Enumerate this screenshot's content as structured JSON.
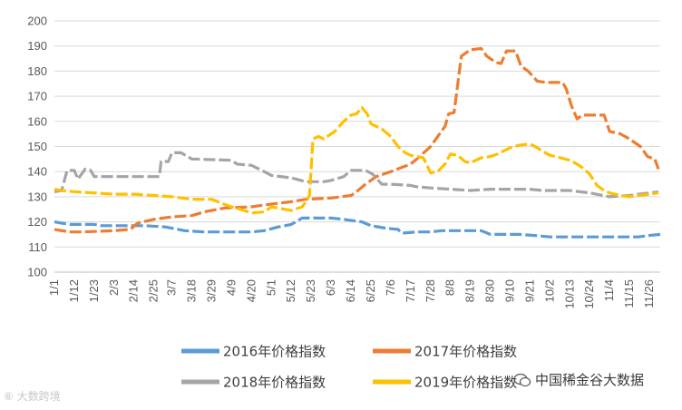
{
  "chart_data": {
    "type": "line",
    "title": "",
    "xlabel": "",
    "ylabel": "",
    "ylim": [
      100,
      200
    ],
    "yticks": [
      100,
      110,
      120,
      130,
      140,
      150,
      160,
      170,
      180,
      190,
      200
    ],
    "grid": true,
    "legend": "bottom",
    "x_ticks": [
      "1/1",
      "1/12",
      "1/23",
      "2/3",
      "2/14",
      "2/25",
      "3/7",
      "3/18",
      "3/29",
      "4/9",
      "4/20",
      "5/1",
      "5/12",
      "5/23",
      "6/3",
      "6/14",
      "6/25",
      "7/6",
      "7/17",
      "7/28",
      "8/8",
      "8/19",
      "8/30",
      "9/10",
      "9/21",
      "10/2",
      "10/13",
      "10/24",
      "11/4",
      "11/15",
      "11/26"
    ],
    "series": [
      {
        "name": "2016年价格指数",
        "color": "#5B9BD5",
        "values": [
          [
            "1/1",
            120
          ],
          [
            "1/5",
            119.5
          ],
          [
            "1/10",
            119
          ],
          [
            "1/23",
            119
          ],
          [
            "1/27",
            118.5
          ],
          [
            "2/20",
            118.5
          ],
          [
            "3/3",
            118
          ],
          [
            "3/14",
            116.5
          ],
          [
            "3/25",
            116
          ],
          [
            "4/9",
            116
          ],
          [
            "4/20",
            116
          ],
          [
            "4/27",
            116.5
          ],
          [
            "5/5",
            118
          ],
          [
            "5/12",
            119
          ],
          [
            "5/18",
            121.5
          ],
          [
            "6/3",
            121.5
          ],
          [
            "6/10",
            121
          ],
          [
            "6/20",
            120
          ],
          [
            "6/25",
            118.5
          ],
          [
            "7/3",
            117.5
          ],
          [
            "7/10",
            117
          ],
          [
            "7/12",
            115.5
          ],
          [
            "7/20",
            116
          ],
          [
            "7/28",
            116
          ],
          [
            "8/3",
            116.5
          ],
          [
            "8/25",
            116.5
          ],
          [
            "8/30",
            115
          ],
          [
            "9/15",
            115
          ],
          [
            "9/25",
            114.5
          ],
          [
            "10/2",
            114
          ],
          [
            "10/20",
            114
          ],
          [
            "11/1",
            114
          ],
          [
            "11/20",
            114
          ],
          [
            "11/25",
            114.5
          ],
          [
            "12/2",
            115
          ]
        ]
      },
      {
        "name": "2017年价格指数",
        "color": "#ED7D31",
        "values": [
          [
            "1/1",
            117
          ],
          [
            "1/5",
            116.5
          ],
          [
            "1/10",
            116
          ],
          [
            "1/16",
            116
          ],
          [
            "2/3",
            116.5
          ],
          [
            "2/12",
            117
          ],
          [
            "2/16",
            119.5
          ],
          [
            "2/25",
            121
          ],
          [
            "3/7",
            122
          ],
          [
            "3/18",
            122.5
          ],
          [
            "3/25",
            124
          ],
          [
            "4/5",
            125.5
          ],
          [
            "4/20",
            126
          ],
          [
            "4/30",
            127
          ],
          [
            "5/12",
            128
          ],
          [
            "5/20",
            129
          ],
          [
            "6/3",
            129.5
          ],
          [
            "6/14",
            130.5
          ],
          [
            "6/17",
            132
          ],
          [
            "6/22",
            135
          ],
          [
            "6/28",
            138
          ],
          [
            "7/6",
            140
          ],
          [
            "7/17",
            143
          ],
          [
            "7/22",
            146
          ],
          [
            "7/28",
            150
          ],
          [
            "8/1",
            154
          ],
          [
            "8/5",
            158
          ],
          [
            "8/7",
            163
          ],
          [
            "8/10",
            163.5
          ],
          [
            "8/14",
            186
          ],
          [
            "8/19",
            188.5
          ],
          [
            "8/25",
            189
          ],
          [
            "8/28",
            186
          ],
          [
            "9/2",
            183.5
          ],
          [
            "9/5",
            183
          ],
          [
            "9/8",
            188
          ],
          [
            "9/13",
            188
          ],
          [
            "9/16",
            182
          ],
          [
            "9/20",
            180
          ],
          [
            "9/25",
            176
          ],
          [
            "9/30",
            175.5
          ],
          [
            "10/9",
            175.5
          ],
          [
            "10/11",
            173
          ],
          [
            "10/14",
            166
          ],
          [
            "10/17",
            161
          ],
          [
            "10/20",
            162.5
          ],
          [
            "11/1",
            162.5
          ],
          [
            "11/4",
            156
          ],
          [
            "11/10",
            155
          ],
          [
            "11/15",
            153
          ],
          [
            "11/21",
            150
          ],
          [
            "11/25",
            146
          ],
          [
            "11/29",
            145
          ],
          [
            "12/1",
            141
          ]
        ]
      },
      {
        "name": "2018年价格指数",
        "color": "#A5A5A5",
        "values": [
          [
            "1/1",
            132
          ],
          [
            "1/5",
            132.5
          ],
          [
            "1/8",
            140.5
          ],
          [
            "1/12",
            140.5
          ],
          [
            "1/14",
            137
          ],
          [
            "1/18",
            141
          ],
          [
            "1/21",
            140.5
          ],
          [
            "1/23",
            138
          ],
          [
            "2/3",
            138
          ],
          [
            "2/7",
            138
          ],
          [
            "2/28",
            138
          ],
          [
            "3/1",
            144
          ],
          [
            "3/5",
            144
          ],
          [
            "3/7",
            147.5
          ],
          [
            "3/12",
            147.5
          ],
          [
            "3/18",
            145
          ],
          [
            "4/9",
            144.5
          ],
          [
            "4/12",
            143
          ],
          [
            "4/20",
            142.5
          ],
          [
            "4/27",
            140
          ],
          [
            "5/1",
            138.5
          ],
          [
            "5/12",
            137.5
          ],
          [
            "5/20",
            136
          ],
          [
            "5/30",
            136
          ],
          [
            "6/3",
            136.5
          ],
          [
            "6/10",
            138
          ],
          [
            "6/14",
            140.5
          ],
          [
            "6/22",
            140.5
          ],
          [
            "6/26",
            139
          ],
          [
            "7/1",
            135
          ],
          [
            "7/6",
            135
          ],
          [
            "7/17",
            134.5
          ],
          [
            "7/20",
            134
          ],
          [
            "7/28",
            133.5
          ],
          [
            "8/8",
            133
          ],
          [
            "8/19",
            132.5
          ],
          [
            "8/30",
            133
          ],
          [
            "9/21",
            133
          ],
          [
            "9/28",
            132.5
          ],
          [
            "10/13",
            132.5
          ],
          [
            "10/24",
            131.5
          ],
          [
            "11/4",
            130
          ],
          [
            "11/15",
            130.5
          ],
          [
            "11/20",
            131
          ],
          [
            "11/26",
            131.5
          ],
          [
            "12/1",
            132
          ]
        ]
      },
      {
        "name": "2019年价格指数",
        "color": "#FFC000",
        "values": [
          [
            "1/1",
            133
          ],
          [
            "1/5",
            132.5
          ],
          [
            "1/12",
            132
          ],
          [
            "1/23",
            131.5
          ],
          [
            "2/3",
            131
          ],
          [
            "2/14",
            131
          ],
          [
            "2/25",
            130.5
          ],
          [
            "3/7",
            130
          ],
          [
            "3/18",
            129
          ],
          [
            "3/29",
            129
          ],
          [
            "4/5",
            127
          ],
          [
            "4/9",
            126
          ],
          [
            "4/16",
            124.5
          ],
          [
            "4/20",
            123.5
          ],
          [
            "4/27",
            124
          ],
          [
            "5/1",
            126
          ],
          [
            "5/12",
            124.5
          ],
          [
            "5/18",
            126
          ],
          [
            "5/20",
            128
          ],
          [
            "5/22",
            130.5
          ],
          [
            "5/24",
            153
          ],
          [
            "5/27",
            154
          ],
          [
            "5/30",
            153
          ],
          [
            "6/3",
            155
          ],
          [
            "6/5",
            156
          ],
          [
            "6/10",
            160
          ],
          [
            "6/14",
            162.5
          ],
          [
            "6/17",
            163
          ],
          [
            "6/20",
            165.5
          ],
          [
            "6/23",
            163
          ],
          [
            "6/25",
            159
          ],
          [
            "7/1",
            157
          ],
          [
            "7/6",
            154
          ],
          [
            "7/10",
            150
          ],
          [
            "7/14",
            147.5
          ],
          [
            "7/17",
            146.5
          ],
          [
            "7/24",
            145.5
          ],
          [
            "7/28",
            139.5
          ],
          [
            "8/1",
            140
          ],
          [
            "8/5",
            143
          ],
          [
            "8/8",
            147
          ],
          [
            "8/12",
            146.5
          ],
          [
            "8/16",
            144
          ],
          [
            "8/19",
            143.5
          ],
          [
            "8/25",
            145.5
          ],
          [
            "8/30",
            146
          ],
          [
            "9/3",
            147
          ],
          [
            "9/10",
            149.5
          ],
          [
            "9/15",
            150.5
          ],
          [
            "9/21",
            151
          ],
          [
            "9/25",
            149.5
          ],
          [
            "9/28",
            148
          ],
          [
            "10/2",
            146.5
          ],
          [
            "10/8",
            145.5
          ],
          [
            "10/13",
            144.5
          ],
          [
            "10/17",
            143
          ],
          [
            "10/20",
            141.5
          ],
          [
            "10/24",
            139
          ],
          [
            "10/28",
            134.5
          ],
          [
            "11/1",
            132.5
          ],
          [
            "11/4",
            131.5
          ],
          [
            "11/10",
            130.5
          ],
          [
            "11/15",
            130
          ],
          [
            "11/20",
            130.5
          ],
          [
            "11/26",
            131
          ],
          [
            "12/1",
            131.5
          ]
        ]
      }
    ]
  },
  "watermarks": {
    "left": "大数跨境",
    "right": "中国稀金谷大数据"
  }
}
